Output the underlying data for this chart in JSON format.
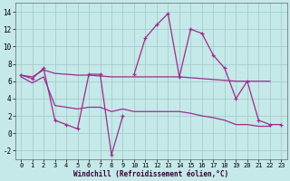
{
  "x": [
    0,
    1,
    2,
    3,
    4,
    5,
    6,
    7,
    8,
    9,
    10,
    11,
    12,
    13,
    14,
    15,
    16,
    17,
    18,
    19,
    20,
    21,
    22,
    23
  ],
  "line_jagged": [
    6.7,
    6.3,
    7.5,
    1.5,
    1.0,
    0.5,
    6.8,
    6.8,
    -2.5,
    2.0,
    null,
    null,
    null,
    null,
    null,
    null,
    null,
    null,
    null,
    null,
    null,
    null,
    null,
    null
  ],
  "line_peak": [
    null,
    null,
    null,
    null,
    null,
    null,
    null,
    null,
    null,
    null,
    6.8,
    11.0,
    12.5,
    13.8,
    6.5,
    12.0,
    11.5,
    9.0,
    7.5,
    4.0,
    6.0,
    1.5,
    1.0,
    1.0
  ],
  "line_upper": [
    6.7,
    6.5,
    7.3,
    6.9,
    6.8,
    6.7,
    6.7,
    6.6,
    6.5,
    6.5,
    6.5,
    6.5,
    6.5,
    6.5,
    6.5,
    6.4,
    6.3,
    6.2,
    6.1,
    6.0,
    6.0,
    6.0,
    6.0,
    null
  ],
  "line_lower": [
    6.5,
    5.8,
    6.5,
    3.2,
    3.0,
    2.8,
    3.0,
    3.0,
    2.5,
    2.8,
    2.5,
    2.5,
    2.5,
    2.5,
    2.5,
    2.3,
    2.0,
    1.8,
    1.5,
    1.0,
    1.0,
    0.8,
    0.8,
    null
  ],
  "line_color": "#9b2d8e",
  "bg_color": "#c5e8e8",
  "grid_color": "#a0c8c8",
  "xlabel": "Windchill (Refroidissement éolien,°C)",
  "ylim": [
    -3,
    15
  ],
  "xlim": [
    -0.5,
    23.5
  ],
  "yticks": [
    -2,
    0,
    2,
    4,
    6,
    8,
    10,
    12,
    14
  ],
  "xticks": [
    0,
    1,
    2,
    3,
    4,
    5,
    6,
    7,
    8,
    9,
    10,
    11,
    12,
    13,
    14,
    15,
    16,
    17,
    18,
    19,
    20,
    21,
    22,
    23
  ]
}
